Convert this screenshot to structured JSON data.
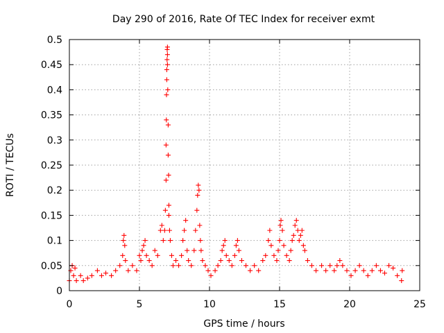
{
  "chart_data": {
    "type": "scatter",
    "title": "Day 290 of 2016, Rate Of TEC Index for receiver exmt",
    "xlabel": "GPS time / hours",
    "ylabel": "ROTI / TECUs",
    "xlim": [
      0,
      25
    ],
    "ylim": [
      0,
      0.5
    ],
    "xticks": [
      0,
      5,
      10,
      15,
      20,
      25
    ],
    "xtick_labels": [
      "0",
      "5",
      "10",
      "15",
      "20",
      "25"
    ],
    "yticks": [
      0,
      0.05,
      0.1,
      0.15,
      0.2,
      0.25,
      0.3,
      0.35,
      0.4,
      0.45,
      0.5
    ],
    "ytick_labels": [
      "0",
      "0.05",
      "0.1",
      "0.15",
      "0.2",
      "0.25",
      "0.3",
      "0.35",
      "0.4",
      "0.45",
      "0.5"
    ],
    "grid": true,
    "marker": "+",
    "color": "#ff0000",
    "series": [
      {
        "name": "ROTI",
        "x": [
          0.0,
          0.1,
          0.2,
          0.3,
          0.4,
          0.5,
          0.8,
          1.0,
          1.3,
          1.6,
          2.0,
          2.3,
          2.6,
          3.0,
          3.3,
          3.6,
          3.8,
          3.85,
          3.9,
          3.95,
          4.0,
          4.2,
          4.5,
          4.8,
          5.0,
          5.1,
          5.2,
          5.3,
          5.4,
          5.5,
          5.7,
          5.9,
          6.1,
          6.3,
          6.5,
          6.6,
          6.7,
          6.8,
          6.85,
          6.9,
          6.9,
          6.92,
          6.93,
          6.95,
          6.95,
          6.97,
          6.98,
          7.0,
          7.0,
          7.0,
          7.02,
          7.05,
          7.05,
          7.08,
          7.1,
          7.1,
          7.15,
          7.2,
          7.3,
          7.4,
          7.6,
          7.8,
          8.0,
          8.1,
          8.2,
          8.3,
          8.4,
          8.5,
          8.7,
          8.9,
          9.0,
          9.1,
          9.15,
          9.2,
          9.25,
          9.3,
          9.35,
          9.4,
          9.5,
          9.7,
          9.9,
          10.1,
          10.4,
          10.6,
          10.8,
          10.9,
          11.0,
          11.1,
          11.2,
          11.4,
          11.6,
          11.8,
          11.9,
          12.0,
          12.1,
          12.3,
          12.6,
          12.9,
          13.2,
          13.5,
          13.8,
          14.0,
          14.2,
          14.3,
          14.4,
          14.6,
          14.8,
          14.9,
          15.0,
          15.05,
          15.1,
          15.2,
          15.3,
          15.5,
          15.7,
          15.8,
          15.9,
          16.0,
          16.1,
          16.2,
          16.3,
          16.4,
          16.5,
          16.6,
          16.7,
          16.8,
          17.0,
          17.3,
          17.6,
          18.0,
          18.3,
          18.6,
          18.9,
          19.1,
          19.3,
          19.5,
          19.8,
          20.1,
          20.4,
          20.7,
          21.0,
          21.3,
          21.6,
          21.9,
          22.2,
          22.5,
          22.8,
          23.1,
          23.4,
          23.7,
          23.75
        ],
        "y": [
          0.02,
          0.04,
          0.05,
          0.03,
          0.045,
          0.02,
          0.03,
          0.02,
          0.025,
          0.03,
          0.04,
          0.03,
          0.035,
          0.03,
          0.04,
          0.05,
          0.07,
          0.1,
          0.11,
          0.09,
          0.06,
          0.04,
          0.05,
          0.04,
          0.07,
          0.06,
          0.08,
          0.09,
          0.1,
          0.07,
          0.06,
          0.05,
          0.08,
          0.07,
          0.12,
          0.13,
          0.1,
          0.12,
          0.16,
          0.22,
          0.29,
          0.34,
          0.39,
          0.42,
          0.44,
          0.46,
          0.48,
          0.485,
          0.47,
          0.45,
          0.4,
          0.33,
          0.27,
          0.23,
          0.17,
          0.15,
          0.12,
          0.1,
          0.07,
          0.05,
          0.06,
          0.05,
          0.07,
          0.1,
          0.12,
          0.14,
          0.08,
          0.06,
          0.05,
          0.08,
          0.12,
          0.16,
          0.19,
          0.21,
          0.2,
          0.13,
          0.1,
          0.08,
          0.06,
          0.05,
          0.04,
          0.03,
          0.04,
          0.05,
          0.06,
          0.08,
          0.09,
          0.1,
          0.07,
          0.06,
          0.05,
          0.07,
          0.09,
          0.1,
          0.08,
          0.06,
          0.05,
          0.04,
          0.05,
          0.04,
          0.06,
          0.07,
          0.1,
          0.12,
          0.09,
          0.07,
          0.06,
          0.08,
          0.1,
          0.13,
          0.14,
          0.12,
          0.09,
          0.07,
          0.06,
          0.08,
          0.1,
          0.11,
          0.13,
          0.14,
          0.12,
          0.1,
          0.11,
          0.12,
          0.09,
          0.08,
          0.06,
          0.05,
          0.04,
          0.05,
          0.04,
          0.05,
          0.04,
          0.05,
          0.06,
          0.05,
          0.04,
          0.03,
          0.04,
          0.05,
          0.04,
          0.03,
          0.04,
          0.05,
          0.04,
          0.035,
          0.05,
          0.045,
          0.03,
          0.02,
          0.04
        ]
      }
    ]
  }
}
